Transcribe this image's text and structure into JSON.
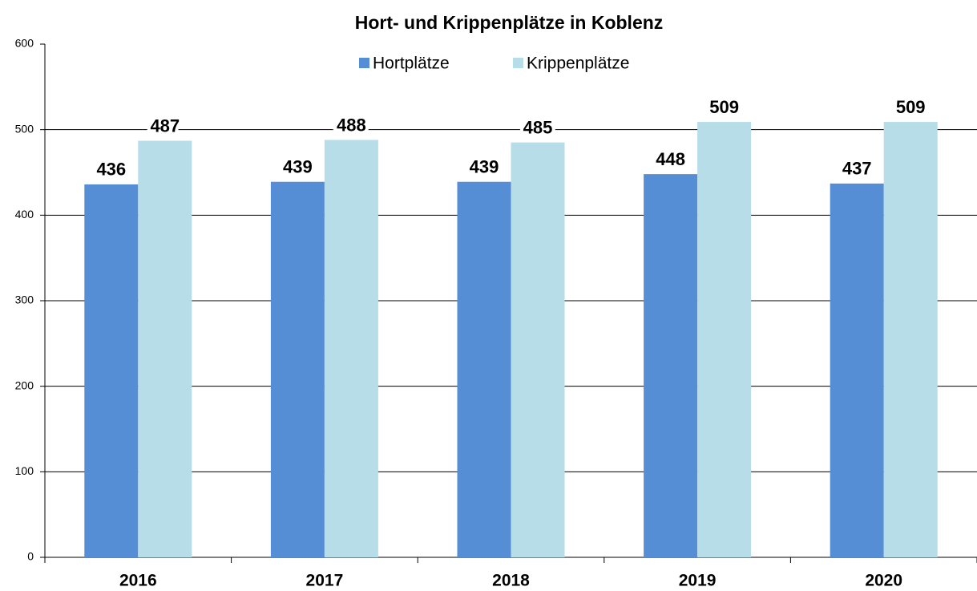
{
  "chart_data": {
    "type": "bar",
    "title": "Hort- und Krippenplätze in Koblenz",
    "categories": [
      "2016",
      "2017",
      "2018",
      "2019",
      "2020"
    ],
    "series": [
      {
        "name": "Hortplätze",
        "color": "#558ed5",
        "values": [
          436,
          439,
          439,
          448,
          437
        ]
      },
      {
        "name": "Krippenplätze",
        "color": "#b7dde8",
        "values": [
          487,
          488,
          485,
          509,
          509
        ]
      }
    ],
    "ylim": [
      0,
      600
    ],
    "yticks": [
      0,
      100,
      200,
      300,
      400,
      500,
      600
    ],
    "grid": true,
    "legend": "top"
  }
}
